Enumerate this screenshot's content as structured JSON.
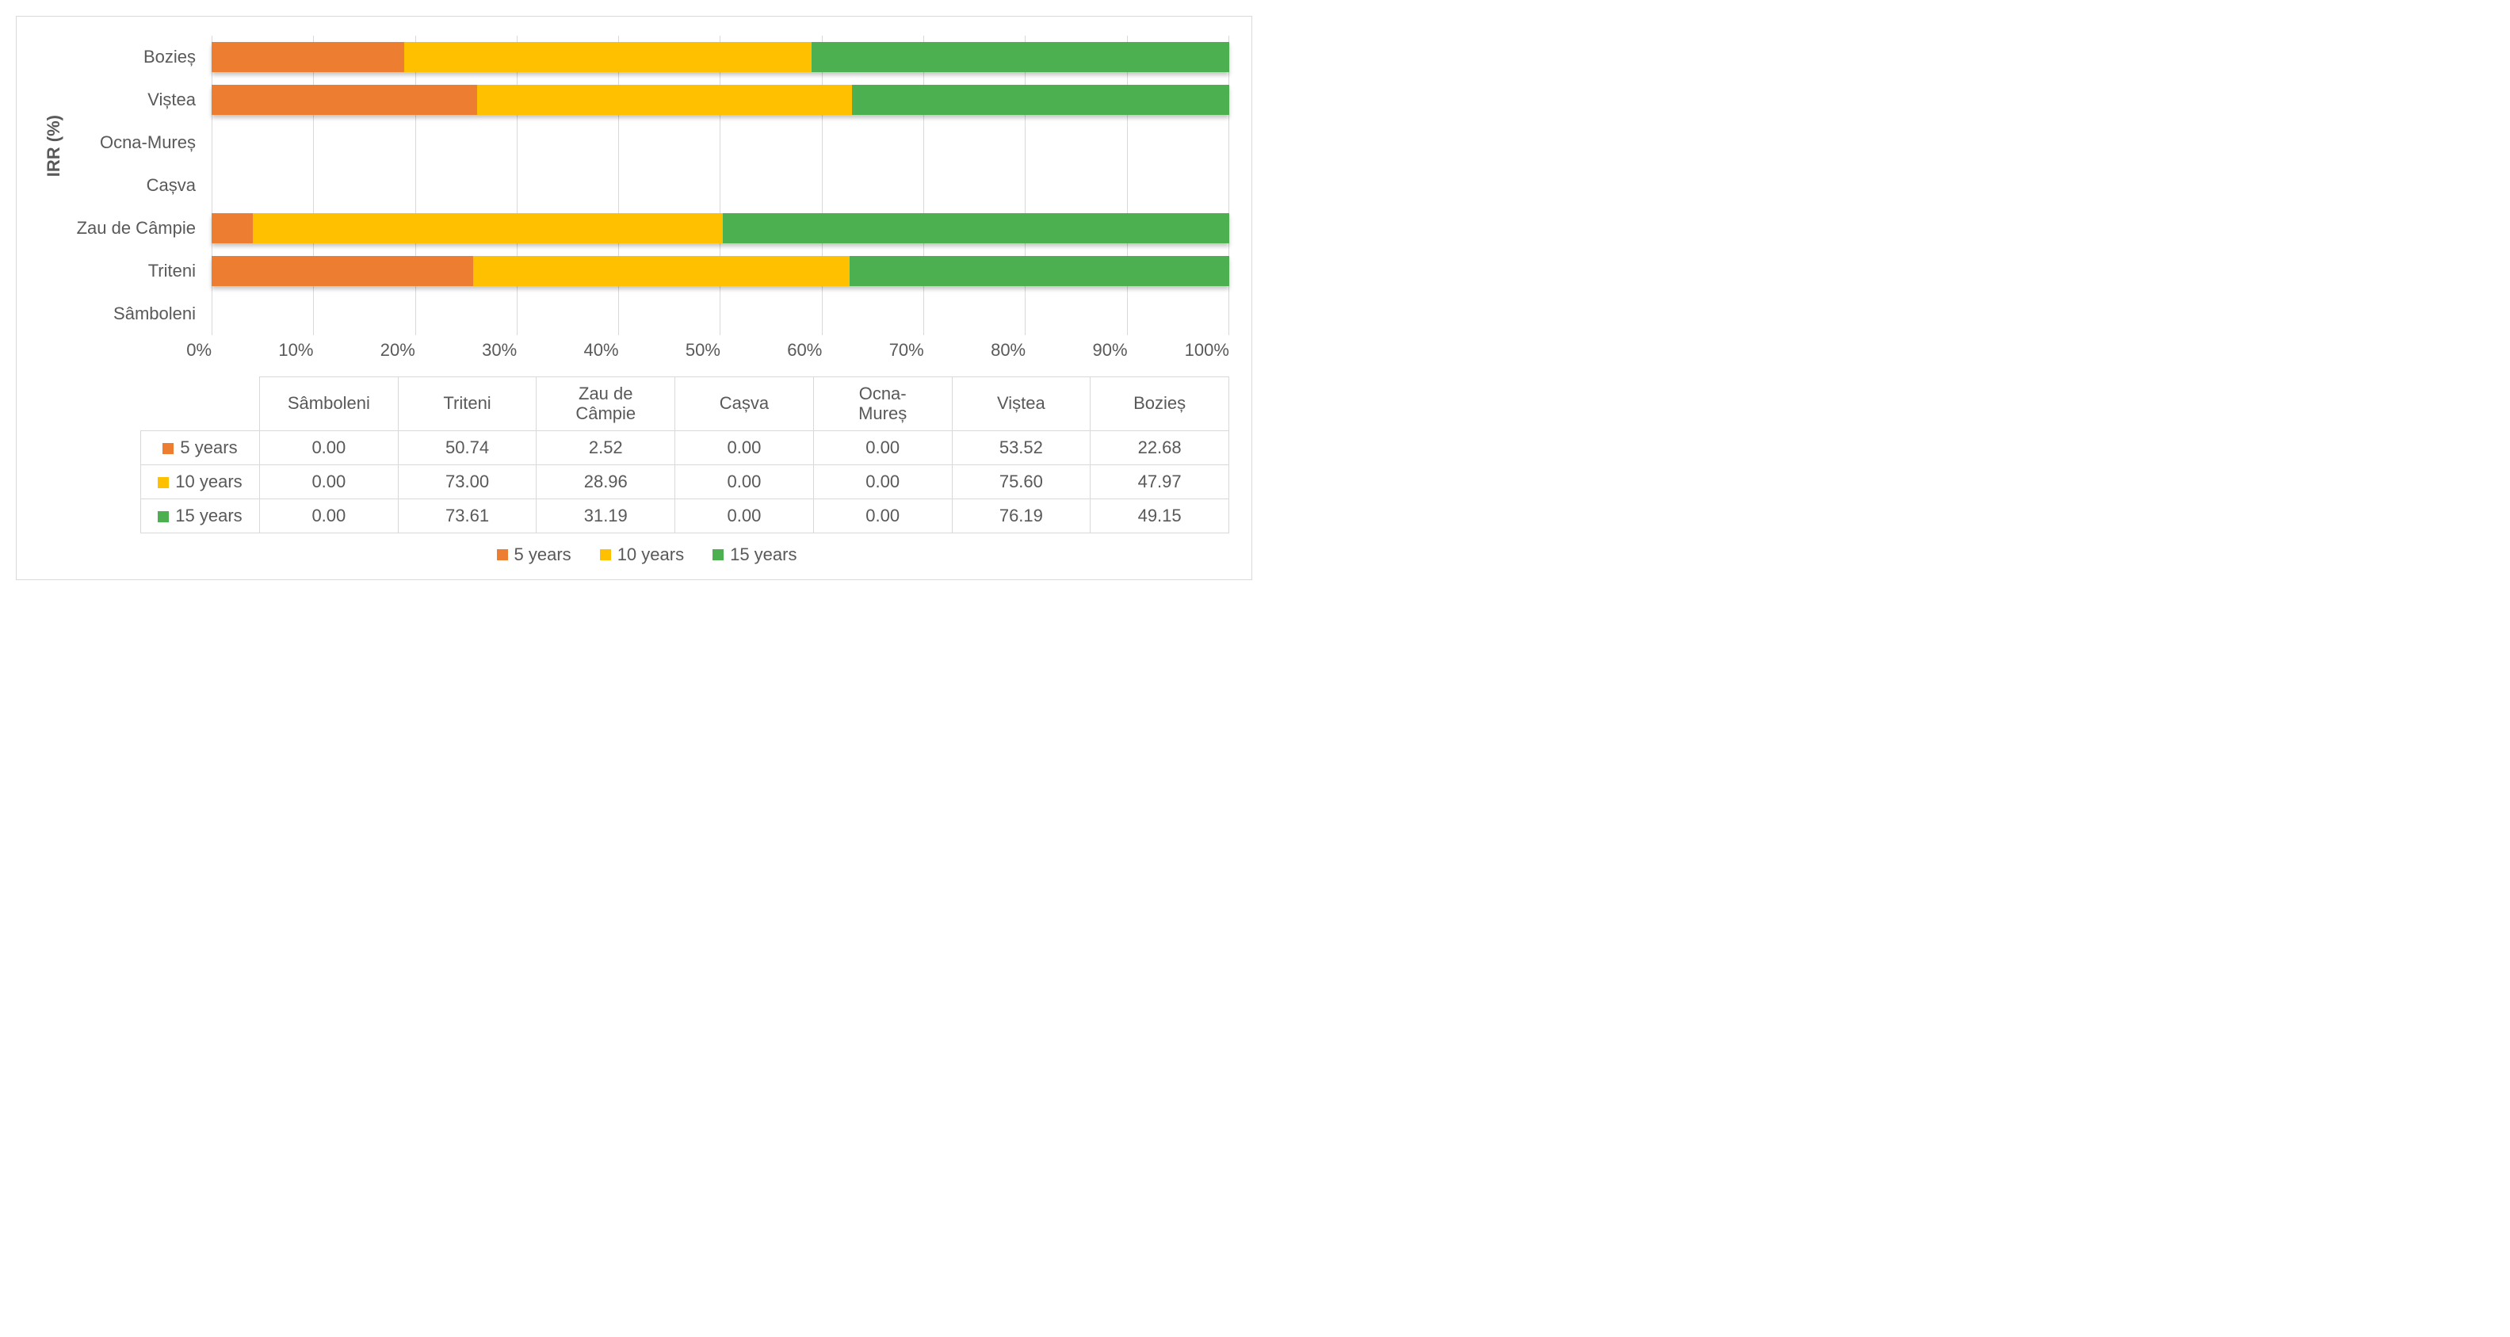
{
  "chart": {
    "type": "stacked-bar-100pct-horizontal",
    "y_axis_title": "IRR (%)",
    "y_axis_title_fontsize": 22,
    "label_fontsize": 22,
    "tick_fontsize": 22,
    "background_color": "#ffffff",
    "border_color": "#d9d9d9",
    "grid_color": "#d9d9d9",
    "text_color": "#595959",
    "bar_shadow": true,
    "categories_top_to_bottom": [
      "Bozieș",
      "Viștea",
      "Ocna-Mureș",
      "Cașva",
      "Zau de Câmpie",
      "Triteni",
      "Sâmboleni"
    ],
    "categories_table_order": [
      "Sâmboleni",
      "Triteni",
      "Zau de Câmpie",
      "Cașva",
      "Ocna-Mureș",
      "Viștea",
      "Bozieș"
    ],
    "series": [
      {
        "name": "5 years",
        "color": "#ed7d31"
      },
      {
        "name": "10 years",
        "color": "#ffc000"
      },
      {
        "name": "15 years",
        "color": "#4caf50"
      }
    ],
    "values": {
      "Sâmboleni": {
        "5 years": 0.0,
        "10 years": 0.0,
        "15 years": 0.0
      },
      "Triteni": {
        "5 years": 50.74,
        "10 years": 73.0,
        "15 years": 73.61
      },
      "Zau de Câmpie": {
        "5 years": 2.52,
        "10 years": 28.96,
        "15 years": 31.19
      },
      "Cașva": {
        "5 years": 0.0,
        "10 years": 0.0,
        "15 years": 0.0
      },
      "Ocna-Mureș": {
        "5 years": 0.0,
        "10 years": 0.0,
        "15 years": 0.0
      },
      "Viștea": {
        "5 years": 53.52,
        "10 years": 75.6,
        "15 years": 76.19
      },
      "Bozieș": {
        "5 years": 22.68,
        "10 years": 47.97,
        "15 years": 49.15
      }
    },
    "x_axis": {
      "min": 0,
      "max": 100,
      "tick_step": 10,
      "format": "percent",
      "ticks": [
        "0%",
        "10%",
        "20%",
        "30%",
        "40%",
        "50%",
        "60%",
        "70%",
        "80%",
        "90%",
        "100%"
      ]
    }
  }
}
